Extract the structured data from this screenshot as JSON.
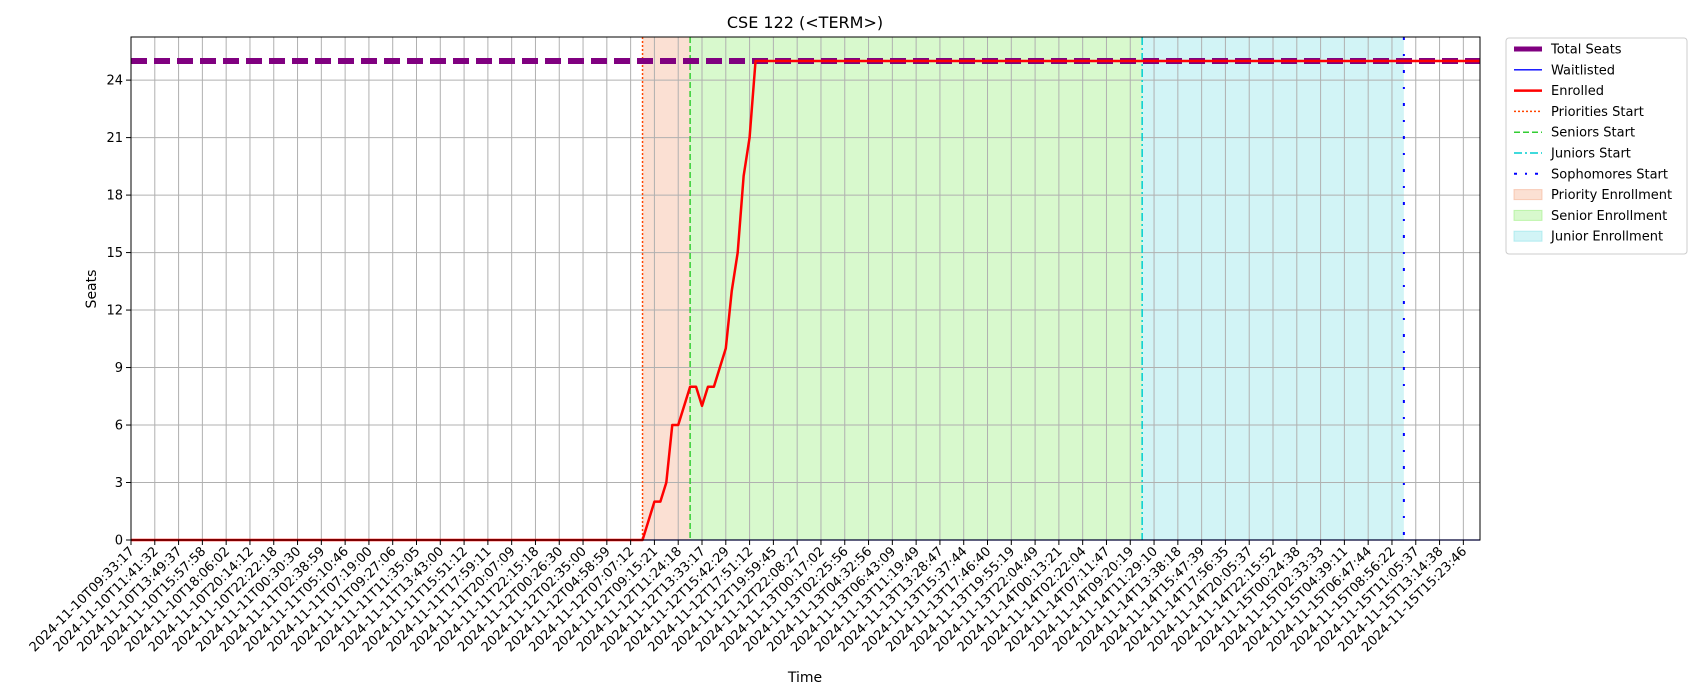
{
  "chart_data": {
    "type": "line",
    "title": "CSE 122 (<TERM>)",
    "xlabel": "Time",
    "ylabel": "Seats",
    "ylim": [
      0,
      26.25
    ],
    "yticks": [
      0,
      3,
      6,
      9,
      12,
      15,
      18,
      21,
      24
    ],
    "grid": true,
    "legend_position": "outside-top-right",
    "x_tick_labels": [
      "2024-11-10T09:33:17",
      "2024-11-10T11:41:32",
      "2024-11-10T13:49:37",
      "2024-11-10T15:57:58",
      "2024-11-10T18:06:02",
      "2024-11-10T20:14:12",
      "2024-11-10T22:22:18",
      "2024-11-11T00:30:30",
      "2024-11-11T02:38:59",
      "2024-11-11T05:10:46",
      "2024-11-11T07:19:00",
      "2024-11-11T09:27:06",
      "2024-11-11T11:35:05",
      "2024-11-11T13:43:00",
      "2024-11-11T15:51:12",
      "2024-11-11T17:59:11",
      "2024-11-11T20:07:09",
      "2024-11-11T22:15:18",
      "2024-11-12T00:26:30",
      "2024-11-12T02:35:00",
      "2024-11-12T04:58:59",
      "2024-11-12T07:07:12",
      "2024-11-12T09:15:21",
      "2024-11-12T11:24:18",
      "2024-11-12T13:33:17",
      "2024-11-12T15:42:29",
      "2024-11-12T17:51:12",
      "2024-11-12T19:59:45",
      "2024-11-12T22:08:27",
      "2024-11-13T00:17:02",
      "2024-11-13T02:25:56",
      "2024-11-13T04:32:56",
      "2024-11-13T06:43:09",
      "2024-11-13T11:19:49",
      "2024-11-13T13:28:47",
      "2024-11-13T15:37:44",
      "2024-11-13T17:46:40",
      "2024-11-13T19:55:19",
      "2024-11-13T22:04:49",
      "2024-11-14T00:13:21",
      "2024-11-14T02:22:04",
      "2024-11-14T07:11:47",
      "2024-11-14T09:20:19",
      "2024-11-14T11:29:10",
      "2024-11-14T13:38:18",
      "2024-11-14T15:47:39",
      "2024-11-14T17:56:35",
      "2024-11-14T20:05:37",
      "2024-11-14T22:15:52",
      "2024-11-15T00:24:38",
      "2024-11-15T02:33:33",
      "2024-11-15T04:39:11",
      "2024-11-15T06:47:44",
      "2024-11-15T08:56:22",
      "2024-11-15T11:05:37",
      "2024-11-15T13:14:38",
      "2024-11-15T15:23:46"
    ],
    "series": [
      {
        "name": "Total Seats",
        "color": "#800080",
        "style": "dashed-thick",
        "points": [
          [
            0,
            25
          ],
          [
            56.7,
            25
          ]
        ]
      },
      {
        "name": "Waitlisted",
        "color": "#0000ff",
        "style": "solid-thin",
        "points": [
          [
            0,
            0
          ],
          [
            56.7,
            0
          ]
        ]
      },
      {
        "name": "Enrolled",
        "color": "#ff0000",
        "style": "solid",
        "points": [
          [
            0,
            0
          ],
          [
            21.5,
            0
          ],
          [
            21.75,
            1
          ],
          [
            22.0,
            2
          ],
          [
            22.25,
            2
          ],
          [
            22.5,
            3
          ],
          [
            22.75,
            6
          ],
          [
            23.0,
            6
          ],
          [
            23.25,
            7
          ],
          [
            23.5,
            8
          ],
          [
            23.75,
            8
          ],
          [
            24.0,
            7
          ],
          [
            24.25,
            8
          ],
          [
            24.5,
            8
          ],
          [
            24.75,
            9
          ],
          [
            25.0,
            10
          ],
          [
            25.25,
            13
          ],
          [
            25.5,
            15
          ],
          [
            25.75,
            19
          ],
          [
            26.0,
            21
          ],
          [
            26.25,
            25
          ],
          [
            56.7,
            25
          ]
        ]
      }
    ],
    "vertical_markers": [
      {
        "name": "Priorities Start",
        "color": "#ff4500",
        "style": "dotted",
        "x": 21.5
      },
      {
        "name": "Seniors Start",
        "color": "#32cd32",
        "style": "dashed",
        "x": 23.5
      },
      {
        "name": "Juniors Start",
        "color": "#00ced1",
        "style": "dashdot",
        "x": 42.5
      },
      {
        "name": "Sophomores Start",
        "color": "#0000ff",
        "style": "loose-dashdot",
        "x": 53.5
      }
    ],
    "shaded_regions": [
      {
        "name": "Priority Enrollment",
        "color": "#f4a582",
        "from": 21.5,
        "to": 23.5
      },
      {
        "name": "Senior Enrollment",
        "color": "#90ee70",
        "from": 23.5,
        "to": 42.5
      },
      {
        "name": "Junior Enrollment",
        "color": "#7fdfe6",
        "from": 42.5,
        "to": 53.5
      }
    ],
    "legend": [
      "Total Seats",
      "Waitlisted",
      "Enrolled",
      "Priorities Start",
      "Seniors Start",
      "Juniors Start",
      "Sophomores Start",
      "Priority Enrollment",
      "Senior Enrollment",
      "Junior Enrollment"
    ]
  }
}
